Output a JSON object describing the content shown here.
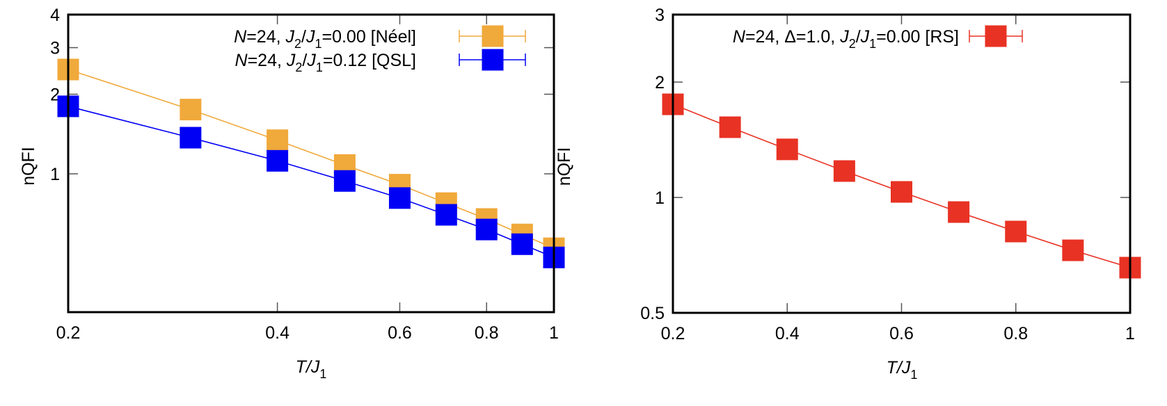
{
  "chart_data": [
    {
      "type": "line",
      "title": "",
      "xlabel": {
        "var": "T",
        "sep": "/",
        "base": "J",
        "sub": "1"
      },
      "ylabel": "nQFI",
      "xscale": "log",
      "yscale": "log",
      "xlim": [
        0.2,
        1
      ],
      "ylim": [
        0.3,
        4
      ],
      "xticks": [
        0.2,
        0.4,
        0.6,
        0.8,
        1
      ],
      "xtick_labels": [
        "0.2",
        "0.4",
        "0.6",
        "0.8",
        "1"
      ],
      "yticks": [
        1,
        2,
        3,
        4
      ],
      "ytick_labels": [
        "1",
        "2",
        "3",
        "4"
      ],
      "grid": false,
      "legend_position": "top-right",
      "x": [
        0.2,
        0.3,
        0.4,
        0.5,
        0.6,
        0.7,
        0.8,
        0.9,
        1.0
      ],
      "series": [
        {
          "name": "N=24, J2/J1=0.00 [Néel]",
          "legend": {
            "N": "N",
            "N_val": "=24, ",
            "J2": "J",
            "J2_sub": "2",
            "slash": "/",
            "J1": "J",
            "J1_sub": "1",
            "rest": "=0.00 [Néel]"
          },
          "color": "#F0A93B",
          "marker": "square",
          "values": [
            2.48,
            1.75,
            1.34,
            1.08,
            0.91,
            0.775,
            0.675,
            0.59,
            0.523
          ]
        },
        {
          "name": "N=24, J2/J1=0.12 [QSL]",
          "legend": {
            "N": "N",
            "N_val": "=24, ",
            "J2": "J",
            "J2_sub": "2",
            "slash": "/",
            "J1": "J",
            "J1_sub": "1",
            "rest": "=0.12 [QSL]"
          },
          "color": "#0000F5",
          "marker": "square",
          "values": [
            1.8,
            1.37,
            1.12,
            0.94,
            0.81,
            0.7,
            0.616,
            0.542,
            0.483
          ]
        }
      ]
    },
    {
      "type": "line",
      "title": "",
      "xlabel": {
        "var": "T",
        "sep": "/",
        "base": "J",
        "sub": "1"
      },
      "ylabel": "nQFI",
      "xscale": "linear",
      "yscale": "log",
      "xlim": [
        0.2,
        1
      ],
      "ylim": [
        0.5,
        3
      ],
      "xticks": [
        0.2,
        0.4,
        0.6,
        0.8,
        1
      ],
      "xtick_labels": [
        "0.2",
        "0.4",
        "0.6",
        "0.8",
        "1"
      ],
      "yticks": [
        0.5,
        1,
        2,
        3
      ],
      "ytick_labels": [
        "0.5",
        "1",
        "2",
        "3"
      ],
      "grid": false,
      "legend_position": "top-right",
      "x": [
        0.2,
        0.3,
        0.4,
        0.5,
        0.6,
        0.7,
        0.8,
        0.9,
        1.0
      ],
      "series": [
        {
          "name": "N=24, Δ=1.0, J2/J1=0.00 [RS]",
          "legend": {
            "N": "N",
            "N_val": "=24, Δ=1.0, ",
            "J2": "J",
            "J2_sub": "2",
            "slash": "/",
            "J1": "J",
            "J1_sub": "1",
            "rest": "=0.00 [RS]"
          },
          "color": "#E83223",
          "marker": "square",
          "values": [
            1.75,
            1.525,
            1.335,
            1.172,
            1.034,
            0.916,
            0.815,
            0.728,
            0.656
          ]
        }
      ]
    }
  ]
}
